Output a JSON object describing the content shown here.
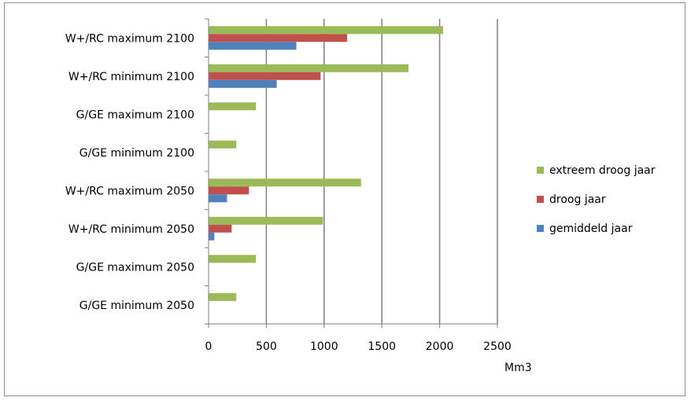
{
  "chart_data": {
    "type": "bar",
    "orientation": "horizontal",
    "categories": [
      "W+/RC maximum 2100",
      "W+/RC minimum 2100",
      "G/GE maximum 2100",
      "G/GE minimum 2100",
      "W+/RC maximum 2050",
      "W+/RC minimum 2050",
      "G/GE maximum 2050",
      "G/GE minimum 2050"
    ],
    "series": [
      {
        "name": "extreem droog jaar",
        "color": "#9bbb59",
        "values": [
          2030,
          1730,
          410,
          240,
          1320,
          990,
          410,
          240
        ]
      },
      {
        "name": "droog jaar",
        "color": "#c0504d",
        "values": [
          1200,
          970,
          0,
          0,
          350,
          200,
          0,
          0
        ]
      },
      {
        "name": "gemiddeld jaar",
        "color": "#4f81bd",
        "values": [
          760,
          590,
          0,
          0,
          160,
          50,
          0,
          0
        ]
      }
    ],
    "xlabel": "Mm3",
    "ylabel": "",
    "xlim": [
      0,
      2500
    ],
    "xticks": [
      "0",
      "500",
      "1000",
      "1500",
      "2000",
      "2500"
    ],
    "grid": "vertical",
    "legend_position": "right"
  }
}
